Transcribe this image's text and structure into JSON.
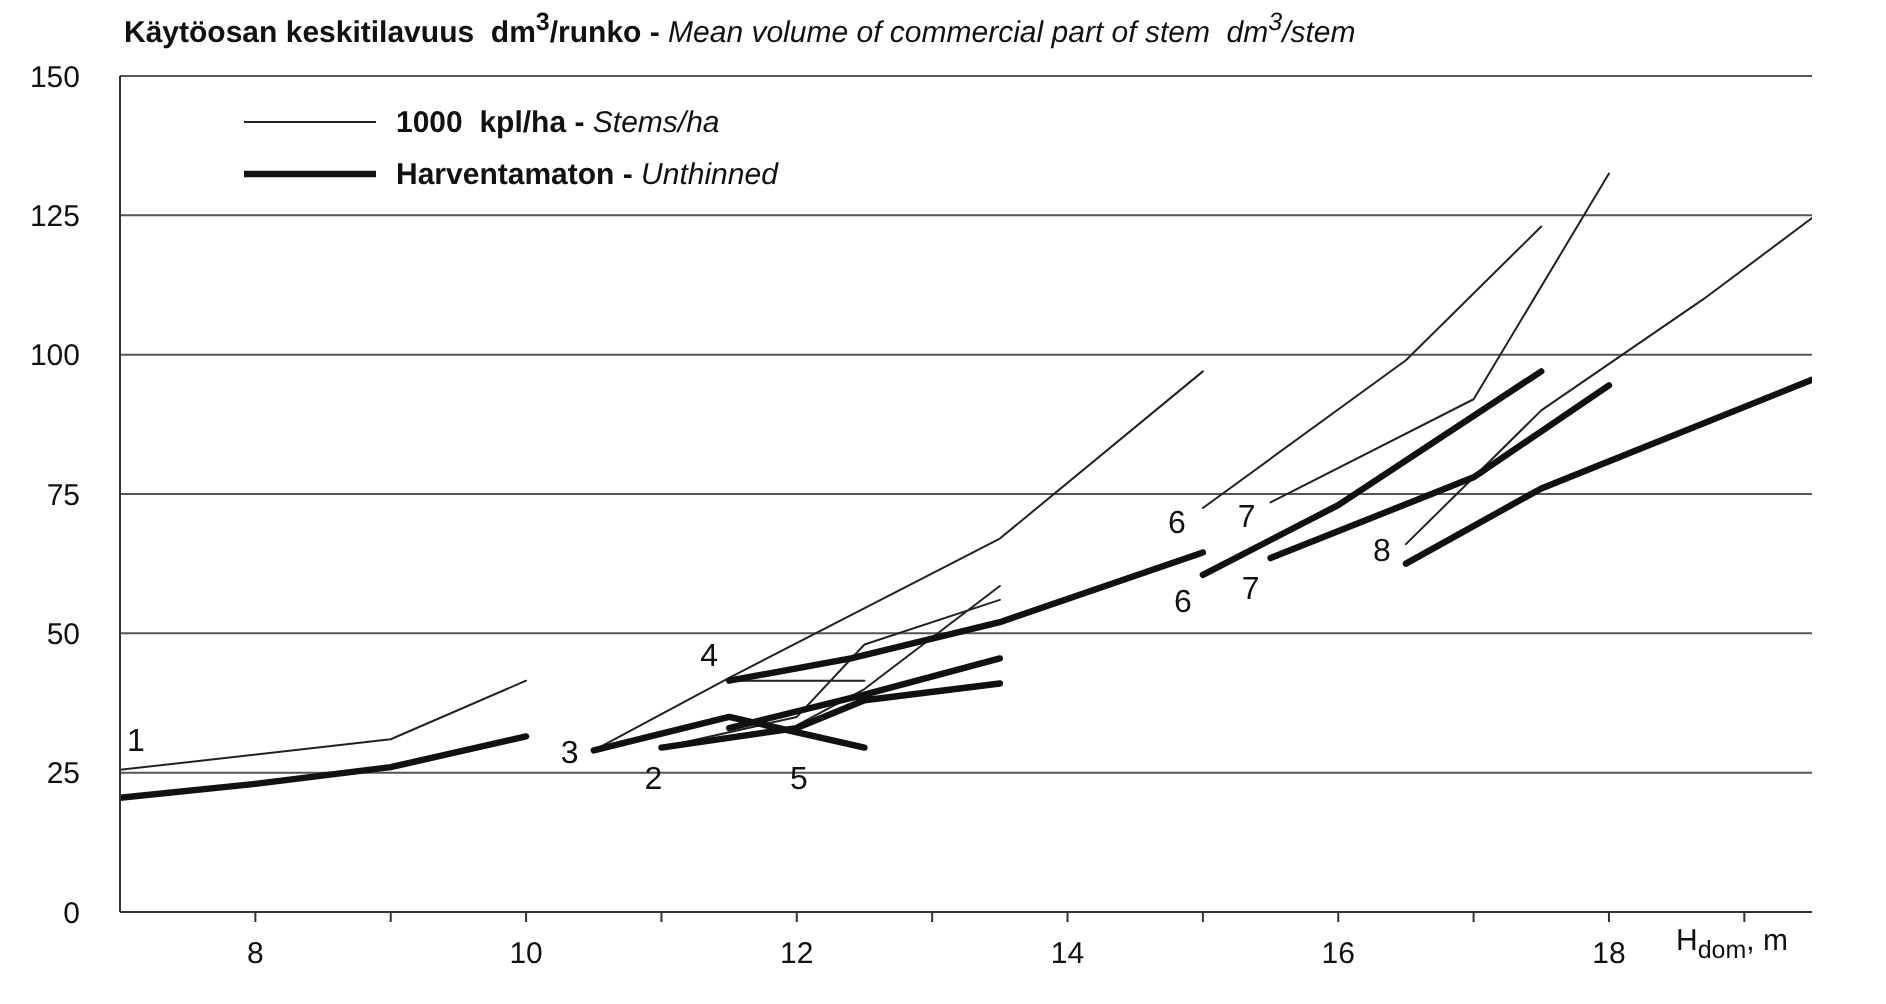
{
  "chart_data": {
    "type": "line",
    "title": "Käytöosan keskitilavuus  dm$^{3}$/runko -",
    "subtitle": "Mean volume of commercial part of stem  dm$^{3}$/stem",
    "xlabel": "H$_{dom}$, m",
    "xlim": [
      7,
      19.5
    ],
    "ylim": [
      0,
      150
    ],
    "xticks": [
      8,
      {
        "value": 9,
        "label": null
      },
      10,
      {
        "value": 11,
        "label": null
      },
      12,
      {
        "value": 13,
        "label": null
      },
      14,
      {
        "value": 15,
        "label": null
      },
      16,
      {
        "value": 17,
        "label": null
      },
      18,
      {
        "value": 19,
        "label": null
      }
    ],
    "yticks": [
      0,
      25,
      50,
      75,
      100,
      125,
      150
    ],
    "grid": "y",
    "legend": "top left",
    "marker": "none",
    "line_style": "solid",
    "series": [
      {
        "name": "1000  kpl/ha - Stems/ha",
        "color": "#222222",
        "x": [
          7,
          9,
          10,
          null,
          10.5,
          11.5,
          13.5,
          15,
          null,
          11.5,
          12.5,
          null,
          11,
          12,
          12.5,
          13.5,
          null,
          12,
          12.5,
          13.5,
          null,
          15,
          16.5,
          17.5,
          null,
          15.5,
          17,
          18,
          null,
          16.5,
          17.5,
          18.7,
          19.5
        ],
        "values": [
          25.5,
          31,
          41.5,
          null,
          29,
          42,
          67,
          97,
          null,
          41.5,
          41.5,
          null,
          29.5,
          35,
          48,
          56,
          null,
          33.5,
          40,
          58.5,
          null,
          72.5,
          99,
          123,
          null,
          73.5,
          92,
          132.5,
          null,
          66,
          90,
          110,
          124.5
        ]
      },
      {
        "name": "Harventamaton - Unthinned",
        "color": "#111111",
        "x": [
          7,
          8,
          9,
          10,
          null,
          10.5,
          11.5,
          12.5,
          null,
          11,
          12,
          12.5,
          13.5,
          null,
          11.5,
          12.5,
          13.5,
          null,
          11.5,
          12.4,
          13.5,
          15,
          null,
          15,
          16,
          17.5,
          null,
          15.5,
          17,
          18,
          null,
          16.5,
          17.5,
          19.5
        ],
        "values": [
          20.5,
          23,
          26,
          31.5,
          null,
          29,
          35,
          29.5,
          null,
          29.5,
          33,
          38,
          41,
          null,
          33,
          39,
          45.5,
          null,
          41.5,
          45.5,
          52,
          64.5,
          null,
          60.5,
          73,
          97,
          null,
          63.5,
          78,
          94.5,
          null,
          62.5,
          76,
          95.5
        ]
      }
    ],
    "annotations": [
      {
        "text": "1",
        "x": 7,
        "y": 25.5
      },
      {
        "text": "2",
        "x": 11,
        "y": 29.5
      },
      {
        "text": "3",
        "x": 10.5,
        "y": 29
      },
      {
        "text": "4",
        "x": 11.5,
        "y": 41.5
      },
      {
        "text": "5",
        "x": 12,
        "y": 33
      },
      {
        "text": "6",
        "x": 15,
        "y": 72.5
      },
      {
        "text": "6",
        "x": 15,
        "y": 60.5
      },
      {
        "text": "7",
        "x": 15.5,
        "y": 73.5
      },
      {
        "text": "7",
        "x": 15.5,
        "y": 63.5
      },
      {
        "text": "8",
        "x": 16.5,
        "y": 66
      }
    ]
  }
}
